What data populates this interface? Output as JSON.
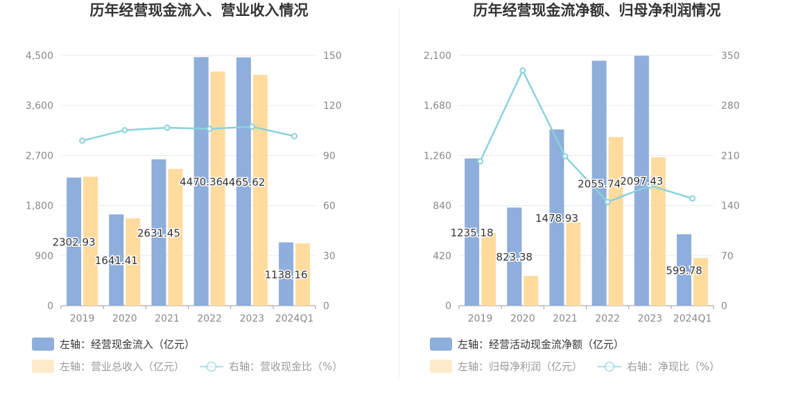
{
  "colors": {
    "bar_primary": "#8eaedb",
    "bar_secondary": "#ffdb9e",
    "line": "#89d2dc",
    "axis_text": "#888888",
    "grid": "#e6eaf2",
    "title": "#333333",
    "label": "#333333"
  },
  "chart_data": [
    {
      "type": "bar",
      "title": "历年经营现金流入、营业收入情况",
      "categories": [
        "2019",
        "2020",
        "2021",
        "2022",
        "2023",
        "2024Q1"
      ],
      "y_left": {
        "ticks": [
          "4,500",
          "3,600",
          "2,700",
          "1,800",
          "900",
          "0"
        ],
        "range": [
          0,
          4500
        ]
      },
      "y_right": {
        "ticks": [
          "150",
          "120",
          "90",
          "60",
          "30",
          "0"
        ],
        "range": [
          0,
          150
        ]
      },
      "series": [
        {
          "name": "左轴：经营现金流入（亿元）",
          "kind": "bar",
          "axis": "left",
          "values": [
            2302.93,
            1641.41,
            2631.45,
            4470.36,
            4465.62,
            1138.16
          ],
          "labels": [
            "2302.93",
            "1641.41",
            "2631.45",
            "4470.36",
            "4465.62",
            "1138.16"
          ]
        },
        {
          "name": "左轴：营业总收入（亿元）",
          "kind": "bar",
          "axis": "left",
          "values": [
            2320,
            1570,
            2460,
            4210,
            4150,
            1120
          ]
        },
        {
          "name": "右轴：营收现金比（%）",
          "kind": "line",
          "axis": "right",
          "values": [
            98.9,
            105.2,
            106.7,
            106.0,
            107.3,
            101.6
          ]
        }
      ]
    },
    {
      "type": "bar",
      "title": "历年经营现金流净额、归母净利润情况",
      "categories": [
        "2019",
        "2020",
        "2021",
        "2022",
        "2023",
        "2024Q1"
      ],
      "y_left": {
        "ticks": [
          "2,100",
          "1,680",
          "1,260",
          "840",
          "420",
          "0"
        ],
        "range": [
          0,
          2100
        ]
      },
      "y_right": {
        "ticks": [
          "350",
          "280",
          "210",
          "140",
          "70",
          "0"
        ],
        "range": [
          0,
          350
        ]
      },
      "series": [
        {
          "name": "左轴：经营活动现金流净额（亿元）",
          "kind": "bar",
          "axis": "left",
          "values": [
            1235.18,
            823.38,
            1478.93,
            2055.74,
            2097.43,
            599.78
          ],
          "labels": [
            "1235.18",
            "823.38",
            "1478.93",
            "2055.74",
            "2097.43",
            "599.78"
          ]
        },
        {
          "name": "左轴：归母净利润（亿元）",
          "kind": "bar",
          "axis": "left",
          "values": [
            610,
            250,
            700,
            1415,
            1245,
            400
          ]
        },
        {
          "name": "右轴：净现比（%）",
          "kind": "line",
          "axis": "right",
          "values": [
            202,
            329,
            209,
            145,
            168,
            150
          ]
        }
      ]
    }
  ]
}
